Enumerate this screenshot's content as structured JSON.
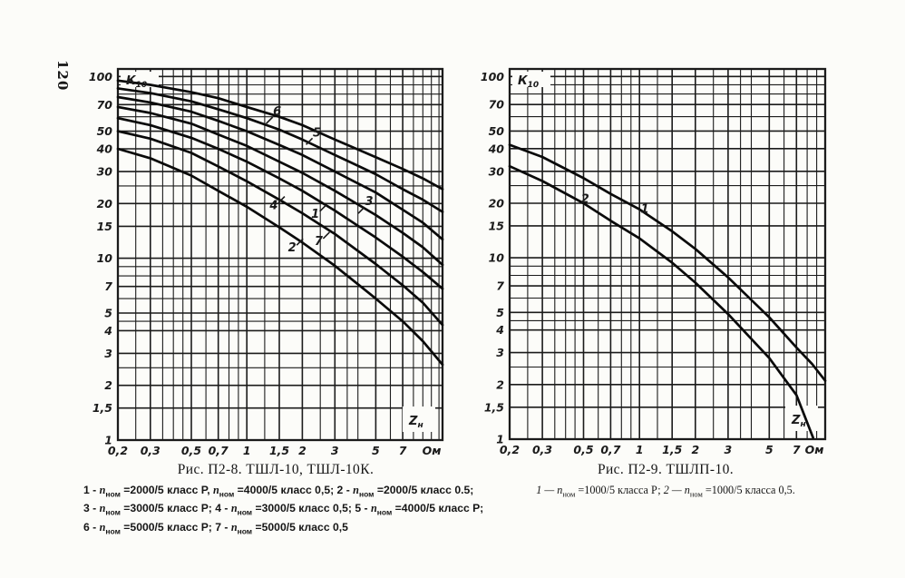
{
  "page": {
    "number": "120",
    "background": "#fcfcf9",
    "ink": "#1b1b1b",
    "curve_color": "#0a0a0a"
  },
  "chart_data": [
    {
      "type": "line",
      "title": "Рис. П2-8. ТШЛ-10, ТШЛ-10К.",
      "ylabel": {
        "main": "К",
        "sub": "10"
      },
      "xlabel": {
        "main": "Z",
        "sub": "н"
      },
      "x_unit": "Ом",
      "log_x": true,
      "log_y": true,
      "grid": "on",
      "xlim": [
        0.2,
        11.5
      ],
      "ylim": [
        1,
        110
      ],
      "x_ticks": [
        {
          "v": 0.2,
          "label": "0,2"
        },
        {
          "v": 0.3,
          "label": "0,3"
        },
        {
          "v": 0.5,
          "label": "0,5"
        },
        {
          "v": 0.7,
          "label": "0,7"
        },
        {
          "v": 1,
          "label": "1"
        },
        {
          "v": 1.5,
          "label": "1,5"
        },
        {
          "v": 2,
          "label": "2"
        },
        {
          "v": 3,
          "label": "3"
        },
        {
          "v": 5,
          "label": "5"
        },
        {
          "v": 7,
          "label": "7"
        }
      ],
      "y_ticks": [
        {
          "v": 100,
          "label": "100"
        },
        {
          "v": 70,
          "label": "70"
        },
        {
          "v": 50,
          "label": "50"
        },
        {
          "v": 40,
          "label": "40"
        },
        {
          "v": 30,
          "label": "30"
        },
        {
          "v": 20,
          "label": "20"
        },
        {
          "v": 15,
          "label": "15"
        },
        {
          "v": 10,
          "label": "10"
        },
        {
          "v": 7,
          "label": "7"
        },
        {
          "v": 5,
          "label": "5"
        },
        {
          "v": 4,
          "label": "4"
        },
        {
          "v": 3,
          "label": "3"
        },
        {
          "v": 2,
          "label": "2"
        },
        {
          "v": 1.5,
          "label": "1,5"
        },
        {
          "v": 1,
          "label": "1"
        }
      ],
      "x_grid": [
        0.2,
        0.25,
        0.3,
        0.35,
        0.4,
        0.45,
        0.5,
        0.6,
        0.7,
        0.8,
        0.9,
        1,
        1.25,
        1.5,
        2,
        2.5,
        3,
        3.5,
        4,
        5,
        6,
        7,
        8,
        9,
        10,
        11
      ],
      "y_grid": [
        1,
        1.5,
        2,
        2.5,
        3,
        4,
        4.5,
        5,
        6,
        7,
        8,
        9,
        10,
        15,
        20,
        25,
        30,
        40,
        50,
        60,
        70,
        80,
        90,
        100
      ],
      "series": [
        {
          "name": "6",
          "points": [
            [
              0.2,
              95
            ],
            [
              0.3,
              90
            ],
            [
              0.5,
              82
            ],
            [
              0.7,
              76
            ],
            [
              1,
              68
            ],
            [
              1.5,
              60
            ],
            [
              2,
              54
            ],
            [
              3,
              45
            ],
            [
              5,
              36
            ],
            [
              7,
              31
            ],
            [
              9,
              27.5
            ],
            [
              11.5,
              24
            ]
          ]
        },
        {
          "name": "5",
          "points": [
            [
              0.2,
              86
            ],
            [
              0.3,
              81
            ],
            [
              0.5,
              73
            ],
            [
              0.7,
              66
            ],
            [
              1,
              59
            ],
            [
              1.5,
              51
            ],
            [
              2,
              45
            ],
            [
              3,
              37
            ],
            [
              5,
              29
            ],
            [
              7,
              24
            ],
            [
              9,
              21
            ],
            [
              11.5,
              18
            ]
          ]
        },
        {
          "name": "3",
          "points": [
            [
              0.2,
              77
            ],
            [
              0.3,
              72
            ],
            [
              0.5,
              64
            ],
            [
              0.7,
              57
            ],
            [
              1,
              50
            ],
            [
              1.5,
              42
            ],
            [
              2,
              37
            ],
            [
              3,
              30
            ],
            [
              5,
              23
            ],
            [
              7,
              18.5
            ],
            [
              9,
              15.7
            ],
            [
              11.5,
              12.7
            ]
          ]
        },
        {
          "name": "1",
          "points": [
            [
              0.2,
              68
            ],
            [
              0.3,
              63
            ],
            [
              0.5,
              55
            ],
            [
              0.7,
              48
            ],
            [
              1,
              41.5
            ],
            [
              1.5,
              34
            ],
            [
              2,
              29.5
            ],
            [
              3,
              23.5
            ],
            [
              5,
              17.3
            ],
            [
              7,
              13.8
            ],
            [
              9,
              11.5
            ],
            [
              11.5,
              9.2
            ]
          ]
        },
        {
          "name": "7",
          "points": [
            [
              0.2,
              59
            ],
            [
              0.3,
              54
            ],
            [
              0.5,
              46
            ],
            [
              0.7,
              40
            ],
            [
              1,
              34
            ],
            [
              1.5,
              27.5
            ],
            [
              2,
              23.5
            ],
            [
              3,
              18.3
            ],
            [
              5,
              13
            ],
            [
              7,
              10.2
            ],
            [
              9,
              8.4
            ],
            [
              11.5,
              6.8
            ]
          ]
        },
        {
          "name": "4",
          "points": [
            [
              0.2,
              50
            ],
            [
              0.3,
              45.5
            ],
            [
              0.5,
              38
            ],
            [
              0.7,
              32
            ],
            [
              1,
              26.5
            ],
            [
              1.5,
              21
            ],
            [
              2,
              17.7
            ],
            [
              3,
              13.6
            ],
            [
              5,
              9.3
            ],
            [
              7,
              7.1
            ],
            [
              9,
              5.7
            ],
            [
              11.5,
              4.3
            ]
          ]
        },
        {
          "name": "2",
          "points": [
            [
              0.2,
              40
            ],
            [
              0.3,
              35.5
            ],
            [
              0.5,
              28.5
            ],
            [
              0.7,
              23.5
            ],
            [
              1,
              19.2
            ],
            [
              1.5,
              14.8
            ],
            [
              2,
              12.2
            ],
            [
              3,
              9.1
            ],
            [
              5,
              6
            ],
            [
              7,
              4.5
            ],
            [
              9,
              3.5
            ],
            [
              11.5,
              2.6
            ]
          ]
        }
      ],
      "series_labels": [
        {
          "text": "6",
          "x": 1.46,
          "y": 64,
          "tick": "ll"
        },
        {
          "text": "5",
          "x": 2.4,
          "y": 49,
          "tick": "ll"
        },
        {
          "text": "3",
          "x": 4.6,
          "y": 20.5,
          "tick": "ll"
        },
        {
          "text": "1",
          "x": 2.35,
          "y": 17.5,
          "tick": "ur"
        },
        {
          "text": "4",
          "x": 1.4,
          "y": 19.5,
          "tick": "ur"
        },
        {
          "text": "7",
          "x": 2.45,
          "y": 12.4,
          "tick": "ur"
        },
        {
          "text": "2",
          "x": 1.76,
          "y": 11.4,
          "tick": "ur"
        }
      ],
      "caption_legend": [
        [
          {
            "text": "1 - ",
            "style": "plain"
          },
          {
            "text": "n",
            "style": "var"
          },
          {
            "text": "ном",
            "style": "sub"
          },
          {
            "text": " =2000/5 класс Р, ",
            "style": "plain"
          },
          {
            "text": "n",
            "style": "var"
          },
          {
            "text": "ном",
            "style": "sub"
          },
          {
            "text": " =4000/5 класс 0,5; 2 - ",
            "style": "plain"
          },
          {
            "text": "n",
            "style": "var"
          },
          {
            "text": "ном",
            "style": "sub"
          },
          {
            "text": " =2000/5 класс 0.5;",
            "style": "plain"
          }
        ],
        [
          {
            "text": "3 - ",
            "style": "plain"
          },
          {
            "text": "n",
            "style": "var"
          },
          {
            "text": "ном",
            "style": "sub"
          },
          {
            "text": " =3000/5 класс Р;  4 - ",
            "style": "plain"
          },
          {
            "text": "n",
            "style": "var"
          },
          {
            "text": "ном",
            "style": "sub"
          },
          {
            "text": " =3000/5 класс 0,5; 5 - ",
            "style": "plain"
          },
          {
            "text": "n",
            "style": "var"
          },
          {
            "text": "ном",
            "style": "sub"
          },
          {
            "text": " =4000/5 класс Р;",
            "style": "plain"
          }
        ],
        [
          {
            "text": "6 - ",
            "style": "plain"
          },
          {
            "text": "n",
            "style": "var"
          },
          {
            "text": "ном",
            "style": "sub"
          },
          {
            "text": " =5000/5 класс Р; 7 - ",
            "style": "plain"
          },
          {
            "text": "n",
            "style": "var"
          },
          {
            "text": "ном",
            "style": "sub"
          },
          {
            "text": " =5000/5 класс 0,5",
            "style": "plain"
          }
        ]
      ]
    },
    {
      "type": "line",
      "title": "Рис. П2-9. ТШЛП-10.",
      "ylabel": {
        "main": "К",
        "sub": "10"
      },
      "xlabel": {
        "main": "Z",
        "sub": "н"
      },
      "x_unit": "Ом",
      "log_x": true,
      "log_y": true,
      "grid": "on",
      "xlim": [
        0.2,
        10
      ],
      "ylim": [
        1,
        110
      ],
      "x_ticks": [
        {
          "v": 0.2,
          "label": "0,2"
        },
        {
          "v": 0.3,
          "label": "0,3"
        },
        {
          "v": 0.5,
          "label": "0,5"
        },
        {
          "v": 0.7,
          "label": "0,7"
        },
        {
          "v": 1,
          "label": "1"
        },
        {
          "v": 1.5,
          "label": "1,5"
        },
        {
          "v": 2,
          "label": "2"
        },
        {
          "v": 3,
          "label": "3"
        },
        {
          "v": 5,
          "label": "5"
        },
        {
          "v": 7,
          "label": "7"
        }
      ],
      "y_ticks": [
        {
          "v": 100,
          "label": "100"
        },
        {
          "v": 70,
          "label": "70"
        },
        {
          "v": 50,
          "label": "50"
        },
        {
          "v": 40,
          "label": "40"
        },
        {
          "v": 30,
          "label": "30"
        },
        {
          "v": 20,
          "label": "20"
        },
        {
          "v": 15,
          "label": "15"
        },
        {
          "v": 10,
          "label": "10"
        },
        {
          "v": 7,
          "label": "7"
        },
        {
          "v": 5,
          "label": "5"
        },
        {
          "v": 4,
          "label": "4"
        },
        {
          "v": 3,
          "label": "3"
        },
        {
          "v": 2,
          "label": "2"
        },
        {
          "v": 1.5,
          "label": "1,5"
        },
        {
          "v": 1,
          "label": "1"
        }
      ],
      "x_grid": [
        0.2,
        0.25,
        0.3,
        0.35,
        0.4,
        0.45,
        0.5,
        0.6,
        0.7,
        0.8,
        0.9,
        1,
        1.25,
        1.5,
        2,
        2.5,
        3,
        3.5,
        4,
        5,
        6,
        7,
        8,
        9,
        10
      ],
      "y_grid": [
        1,
        1.5,
        2,
        2.5,
        3,
        4,
        4.5,
        5,
        6,
        7,
        8,
        9,
        10,
        15,
        20,
        25,
        30,
        40,
        50,
        60,
        70,
        80,
        90,
        100
      ],
      "series": [
        {
          "name": "1",
          "points": [
            [
              0.2,
              42
            ],
            [
              0.3,
              36
            ],
            [
              0.5,
              27.5
            ],
            [
              0.7,
              22.5
            ],
            [
              1,
              18.5
            ],
            [
              1.5,
              14
            ],
            [
              2,
              11.2
            ],
            [
              3,
              7.8
            ],
            [
              5,
              4.7
            ],
            [
              7,
              3.2
            ],
            [
              8.5,
              2.6
            ],
            [
              10,
              2.1
            ]
          ]
        },
        {
          "name": "2",
          "points": [
            [
              0.2,
              32
            ],
            [
              0.3,
              26.5
            ],
            [
              0.5,
              20
            ],
            [
              0.7,
              16
            ],
            [
              1,
              12.8
            ],
            [
              1.5,
              9.4
            ],
            [
              2,
              7.3
            ],
            [
              3,
              4.9
            ],
            [
              5,
              2.8
            ],
            [
              7,
              1.75
            ],
            [
              8.6,
              1.02
            ]
          ]
        }
      ],
      "series_labels": [
        {
          "text": "2",
          "x": 0.51,
          "y": 21,
          "tick": null
        },
        {
          "text": "1",
          "x": 1.07,
          "y": 18.5,
          "tick": null
        }
      ],
      "caption_legend": [
        [
          {
            "text": "1 — ",
            "style": "italic"
          },
          {
            "text": "n",
            "style": "var"
          },
          {
            "text": "ном",
            "style": "sub"
          },
          {
            "text": " =1000/5 класса Р;  ",
            "style": "plain"
          },
          {
            "text": "2 — ",
            "style": "italic"
          },
          {
            "text": "n",
            "style": "var"
          },
          {
            "text": "ном",
            "style": "sub"
          },
          {
            "text": " =1000/5 класса 0,5.",
            "style": "plain"
          }
        ]
      ]
    }
  ]
}
